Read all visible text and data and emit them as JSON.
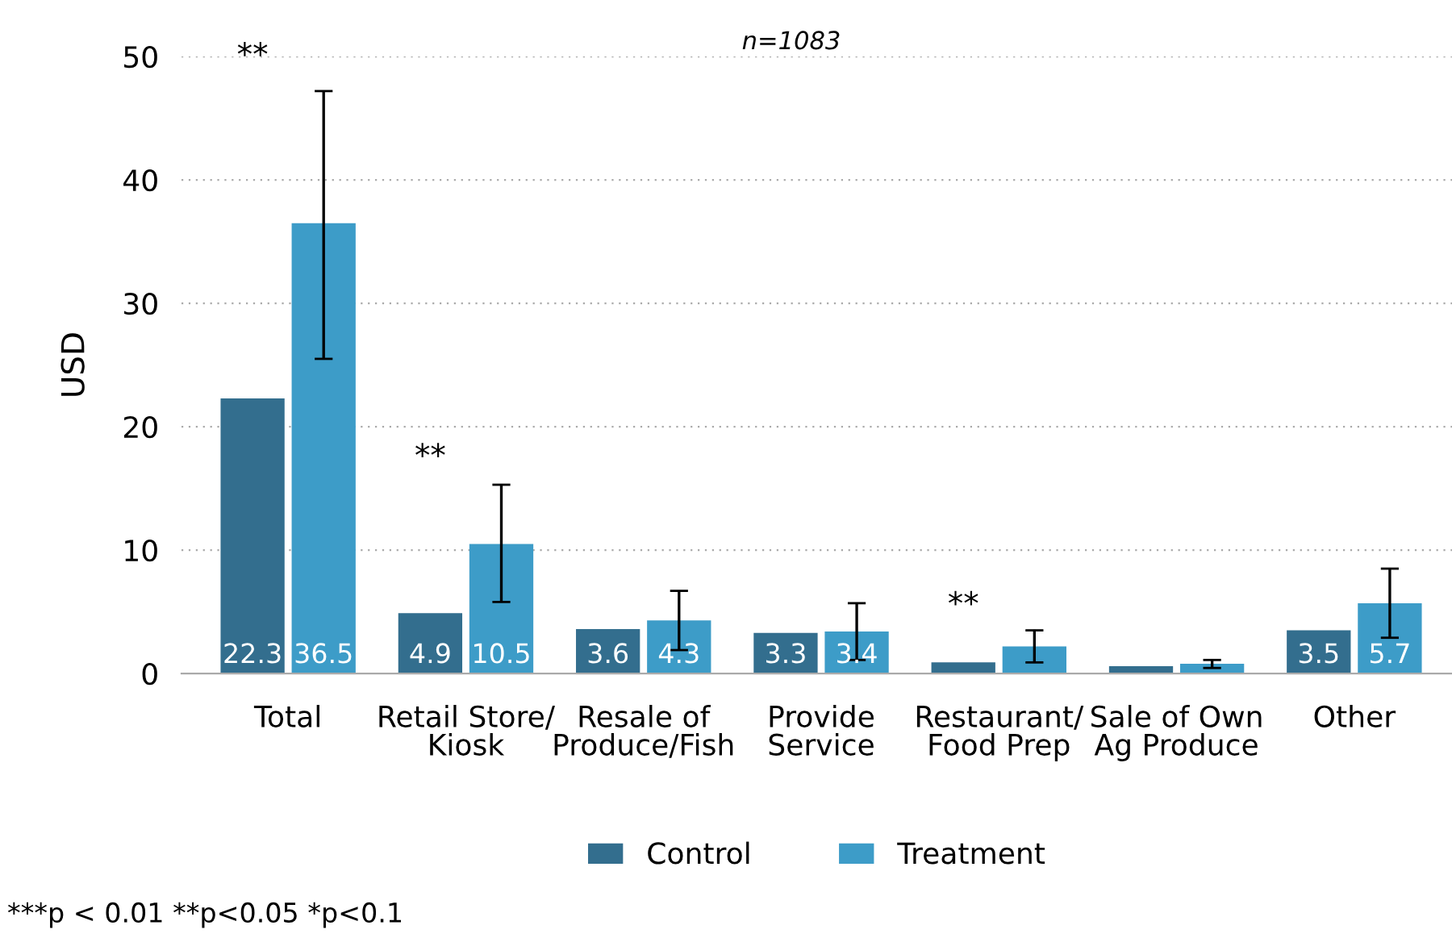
{
  "chart_data": {
    "type": "bar",
    "ylabel": "USD",
    "categories": [
      "Total",
      "Retail Store/\nKiosk",
      "Resale of\nProduce/Fish",
      "Provide\nService",
      "Restaurant/\nFood Prep",
      "Sale of Own\nAg Produce",
      "Other"
    ],
    "series": [
      {
        "name": "Control",
        "color": "#336e8e",
        "values": [
          22.3,
          4.9,
          3.6,
          3.3,
          0.9,
          0.6,
          3.5
        ],
        "value_labels": [
          "22.3",
          "4.9",
          "3.6",
          "3.3",
          null,
          null,
          "3.5"
        ]
      },
      {
        "name": "Treatment",
        "color": "#3d9cc8",
        "values": [
          36.5,
          10.5,
          4.3,
          3.4,
          2.2,
          0.8,
          5.7
        ],
        "value_labels": [
          "36.5",
          "10.5",
          "4.3",
          "3.4",
          null,
          null,
          "5.7"
        ],
        "errors": [
          [
            25.5,
            47.2
          ],
          [
            5.8,
            15.3
          ],
          [
            1.9,
            6.7
          ],
          [
            1.1,
            5.7
          ],
          [
            0.9,
            3.5
          ],
          [
            0.45,
            1.1
          ],
          [
            2.9,
            8.5
          ]
        ]
      }
    ],
    "ylim": [
      0,
      50
    ],
    "yticks": [
      0,
      10,
      20,
      30,
      40,
      50
    ],
    "grid": "y",
    "legend": "bottom",
    "annotations": [
      "**",
      "**",
      "**",
      "n=1083",
      "***p < 0.01 **p<0.05 *p<0.1"
    ]
  }
}
